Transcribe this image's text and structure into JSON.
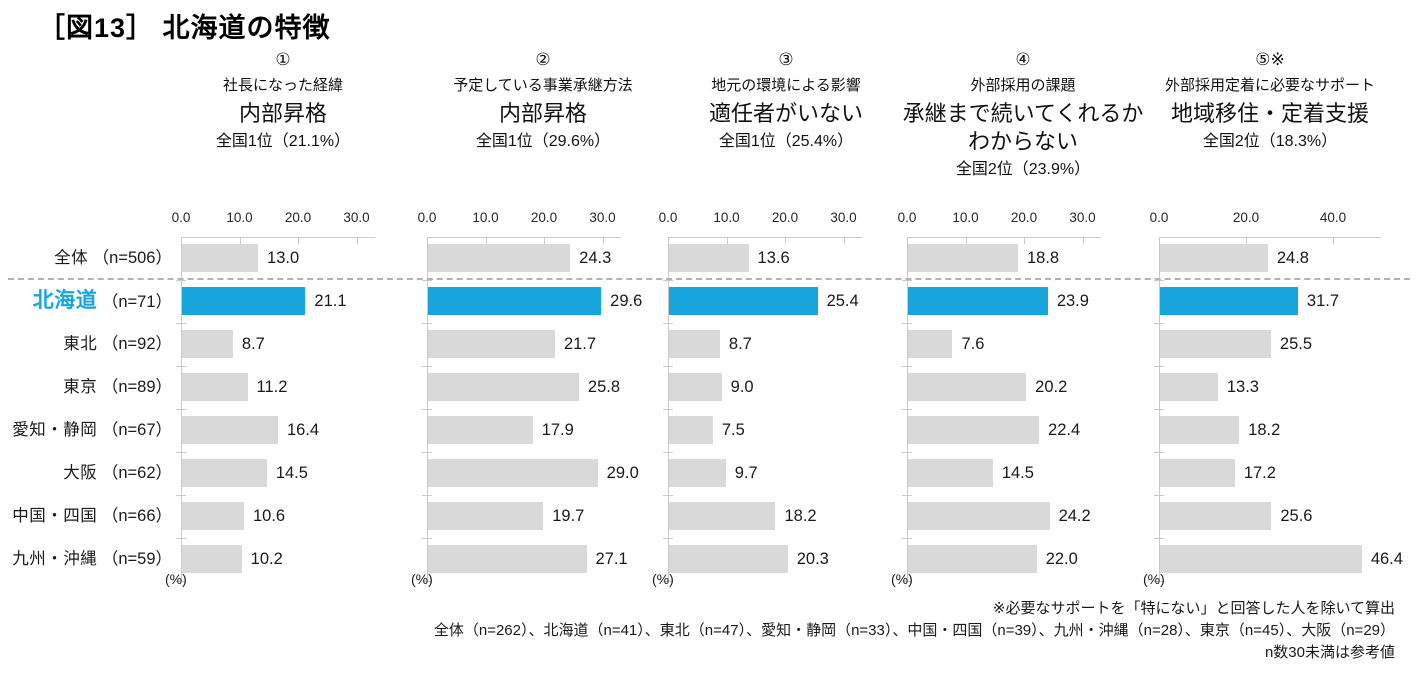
{
  "title": "［図13］ 北海道の特徴",
  "colors": {
    "accent": "#18a5de",
    "bar": "#d9d9d9",
    "axis": "#c9c9c9"
  },
  "percent_label": "(%)",
  "rows": [
    {
      "name": "全体",
      "n": "（n=506）",
      "highlight": false
    },
    {
      "name": "北海道",
      "n": "（n=71）",
      "highlight": true
    },
    {
      "name": "東北",
      "n": "（n=92）",
      "highlight": false
    },
    {
      "name": "東京",
      "n": "（n=89）",
      "highlight": false
    },
    {
      "name": "愛知・静岡",
      "n": "（n=67）",
      "highlight": false
    },
    {
      "name": "大阪",
      "n": "（n=62）",
      "highlight": false
    },
    {
      "name": "中国・四国",
      "n": "（n=66）",
      "highlight": false
    },
    {
      "name": "九州・沖縄",
      "n": "（n=59）",
      "highlight": false
    }
  ],
  "chart_data": {
    "type": "bar",
    "orientation": "horizontal",
    "unit": "%",
    "title": "［図13］ 北海道の特徴",
    "categories": [
      "全体（n=506）",
      "北海道（n=71）",
      "東北（n=92）",
      "東京（n=89）",
      "愛知・静岡（n=67）",
      "大阪（n=62）",
      "中国・四国（n=66）",
      "九州・沖縄（n=59）"
    ],
    "highlight_category": "北海道（n=71）",
    "series": [
      {
        "num": "①",
        "subtitle": "社長になった経緯",
        "answer": "内部昇格",
        "rank": "全国1位（21.1%）",
        "axis_ticks": [
          0,
          10,
          20,
          30
        ],
        "axis_max": 33,
        "values": [
          13.0,
          21.1,
          8.7,
          11.2,
          16.4,
          14.5,
          10.6,
          10.2
        ]
      },
      {
        "num": "②",
        "subtitle": "予定している事業承継方法",
        "answer": "内部昇格",
        "rank": "全国1位（29.6%）",
        "axis_ticks": [
          0,
          10,
          20,
          30
        ],
        "axis_max": 33,
        "values": [
          24.3,
          29.6,
          21.7,
          25.8,
          17.9,
          29.0,
          19.7,
          27.1
        ]
      },
      {
        "num": "③",
        "subtitle": "地元の環境による影響",
        "answer": "適任者がいない",
        "rank": "全国1位（25.4%）",
        "axis_ticks": [
          0,
          10,
          20,
          30
        ],
        "axis_max": 33,
        "values": [
          13.6,
          25.4,
          8.7,
          9.0,
          7.5,
          9.7,
          18.2,
          20.3
        ]
      },
      {
        "num": "④",
        "subtitle": "外部採用の課題",
        "answer": "承継まで続いてくれるか\nわからない",
        "rank": "全国2位（23.9%）",
        "axis_ticks": [
          0,
          10,
          20,
          30
        ],
        "axis_max": 33,
        "values": [
          18.8,
          23.9,
          7.6,
          20.2,
          22.4,
          14.5,
          24.2,
          22.0
        ]
      },
      {
        "num": "⑤※",
        "subtitle": "外部採用定着に必要なサポート",
        "answer": "地域移住・定着支援",
        "rank": "全国2位（18.3%）",
        "axis_ticks": [
          0,
          20,
          40
        ],
        "axis_max": 51,
        "values": [
          24.8,
          31.7,
          25.5,
          13.3,
          18.2,
          17.2,
          25.6,
          46.4
        ]
      }
    ]
  },
  "footer": {
    "note_calc": "※必要なサポートを「特にない」と回答した人を除いて算出",
    "note_n": "全体（n=262）、北海道（n=41）、東北（n=47）、愛知・静岡（n=33）、中国・四国（n=39）、九州・沖縄（n=28）、東京（n=45）、大阪（n=29）",
    "note_ref": "n数30未満は参考値"
  }
}
